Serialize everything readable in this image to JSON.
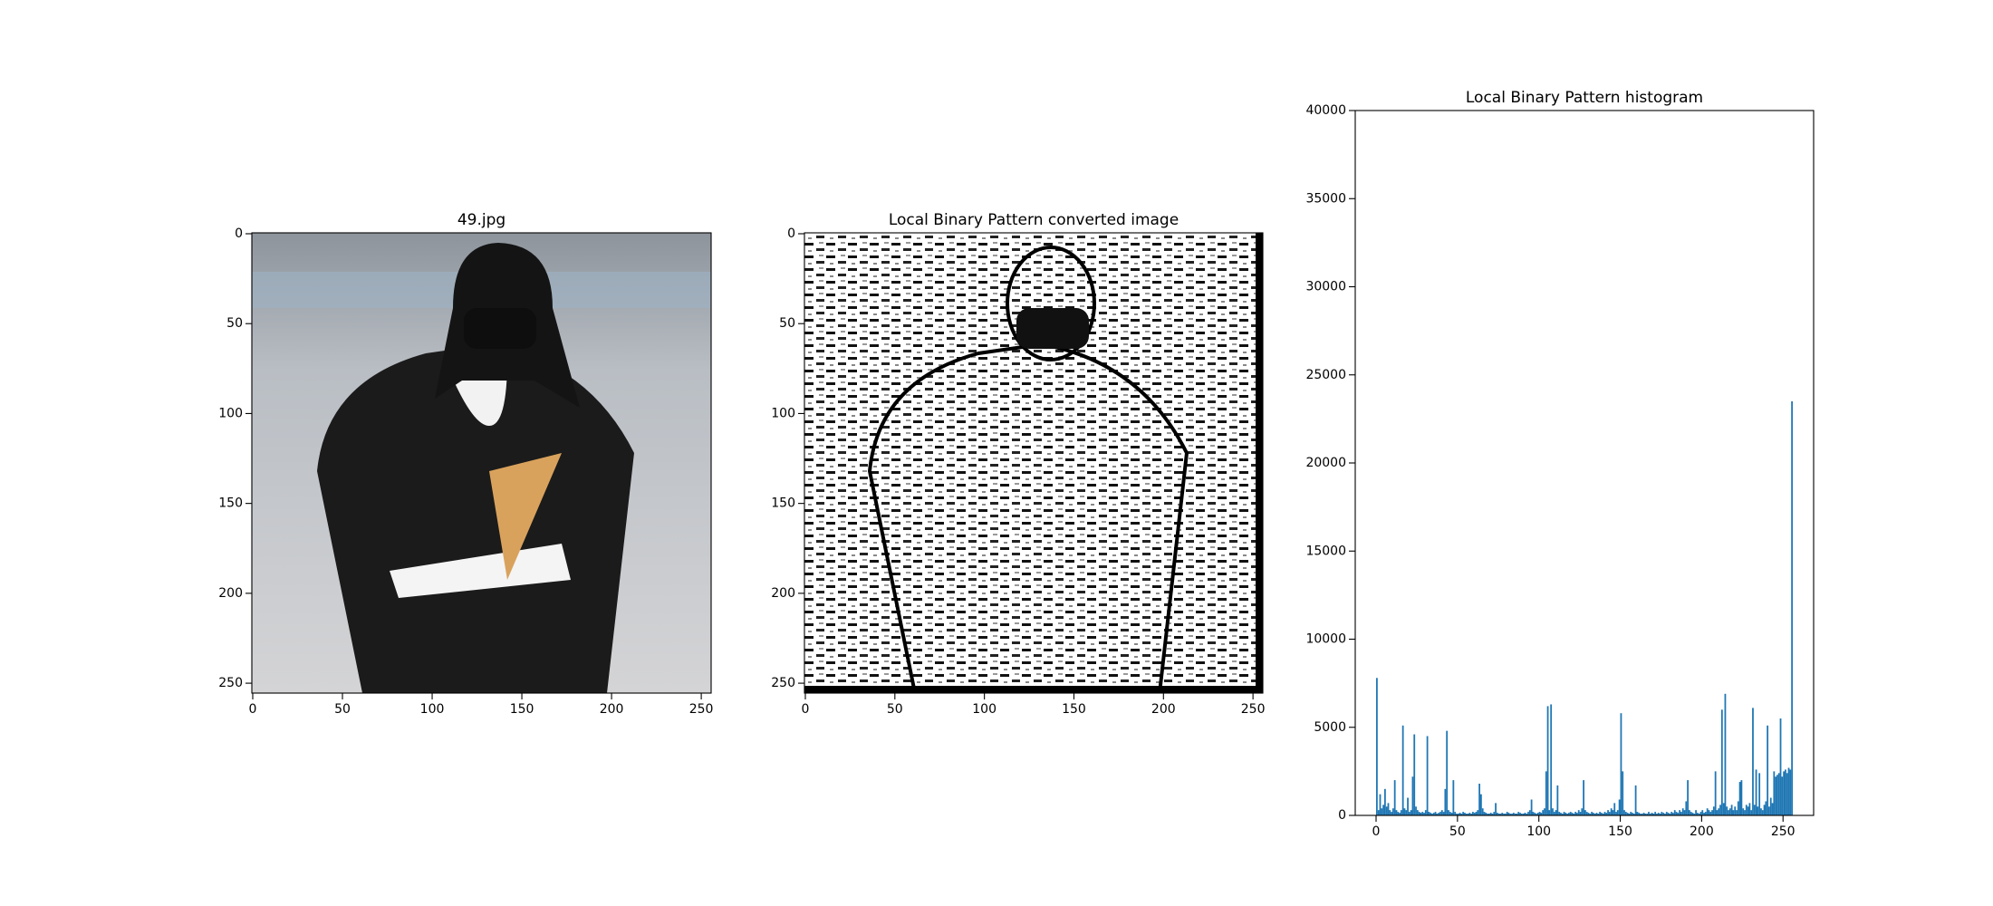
{
  "chart_data": [
    {
      "type": "image",
      "title": "49.jpg",
      "xlim": [
        -0.5,
        255.5
      ],
      "ylim": [
        255.5,
        -0.5
      ],
      "xticks": [
        0,
        50,
        100,
        150,
        200,
        250
      ],
      "yticks": [
        0,
        50,
        100,
        150,
        200,
        250
      ]
    },
    {
      "type": "image",
      "title": "Local Binary Pattern converted image",
      "xlim": [
        -0.5,
        255.5
      ],
      "ylim": [
        255.5,
        -0.5
      ],
      "xticks": [
        0,
        50,
        100,
        150,
        200,
        250
      ],
      "yticks": [
        0,
        50,
        100,
        150,
        200,
        250
      ]
    },
    {
      "type": "histogram",
      "title": "Local Binary Pattern histogram",
      "color": "#1f77b4",
      "xlim": [
        -12.8,
        268.8
      ],
      "ylim": [
        0,
        40000
      ],
      "xticks": [
        0,
        50,
        100,
        150,
        200,
        250
      ],
      "yticks": [
        0,
        5000,
        10000,
        15000,
        20000,
        25000,
        30000,
        35000,
        40000
      ],
      "bins": [
        0,
        1,
        2,
        3,
        4,
        5,
        6,
        7,
        8,
        9,
        10,
        11,
        12,
        13,
        14,
        15,
        16,
        17,
        18,
        19,
        20,
        21,
        22,
        23,
        24,
        25,
        26,
        27,
        28,
        29,
        30,
        31,
        32,
        33,
        34,
        35,
        36,
        37,
        38,
        39,
        40,
        41,
        42,
        43,
        44,
        45,
        46,
        47,
        48,
        49,
        50,
        51,
        52,
        53,
        54,
        55,
        56,
        57,
        58,
        59,
        60,
        61,
        62,
        63,
        64,
        65,
        66,
        67,
        68,
        69,
        70,
        71,
        72,
        73,
        74,
        75,
        76,
        77,
        78,
        79,
        80,
        81,
        82,
        83,
        84,
        85,
        86,
        87,
        88,
        89,
        90,
        91,
        92,
        93,
        94,
        95,
        96,
        97,
        98,
        99,
        100,
        101,
        102,
        103,
        104,
        105,
        106,
        107,
        108,
        109,
        110,
        111,
        112,
        113,
        114,
        115,
        116,
        117,
        118,
        119,
        120,
        121,
        122,
        123,
        124,
        125,
        126,
        127,
        128,
        129,
        130,
        131,
        132,
        133,
        134,
        135,
        136,
        137,
        138,
        139,
        140,
        141,
        142,
        143,
        144,
        145,
        146,
        147,
        148,
        149,
        150,
        151,
        152,
        153,
        154,
        155,
        156,
        157,
        158,
        159,
        160,
        161,
        162,
        163,
        164,
        165,
        166,
        167,
        168,
        169,
        170,
        171,
        172,
        173,
        174,
        175,
        176,
        177,
        178,
        179,
        180,
        181,
        182,
        183,
        184,
        185,
        186,
        187,
        188,
        189,
        190,
        191,
        192,
        193,
        194,
        195,
        196,
        197,
        198,
        199,
        200,
        201,
        202,
        203,
        204,
        205,
        206,
        207,
        208,
        209,
        210,
        211,
        212,
        213,
        214,
        215,
        216,
        217,
        218,
        219,
        220,
        221,
        222,
        223,
        224,
        225,
        226,
        227,
        228,
        229,
        230,
        231,
        232,
        233,
        234,
        235,
        236,
        237,
        238,
        239,
        240,
        241,
        242,
        243,
        244,
        245,
        246,
        247,
        248,
        249,
        250,
        251,
        252,
        253,
        254,
        255,
        256
      ],
      "counts": [
        7800,
        300,
        1200,
        400,
        600,
        1500,
        500,
        700,
        300,
        200,
        400,
        2000,
        300,
        200,
        150,
        300,
        5100,
        400,
        300,
        1000,
        200,
        300,
        2200,
        4600,
        500,
        300,
        200,
        150,
        200,
        150,
        300,
        4500,
        200,
        150,
        100,
        150,
        200,
        100,
        150,
        200,
        300,
        200,
        1500,
        4800,
        300,
        200,
        150,
        2000,
        200,
        100,
        100,
        150,
        100,
        200,
        150,
        100,
        100,
        150,
        100,
        200,
        150,
        200,
        300,
        1800,
        1200,
        400,
        200,
        150,
        100,
        100,
        150,
        100,
        200,
        700,
        150,
        100,
        100,
        150,
        100,
        100,
        200,
        150,
        100,
        100,
        150,
        100,
        100,
        200,
        150,
        100,
        100,
        150,
        100,
        200,
        300,
        900,
        200,
        150,
        100,
        150,
        200,
        150,
        300,
        400,
        2500,
        6200,
        300,
        6300,
        400,
        200,
        300,
        1700,
        200,
        150,
        100,
        200,
        150,
        100,
        150,
        200,
        150,
        100,
        200,
        150,
        300,
        200,
        400,
        2000,
        300,
        200,
        150,
        100,
        200,
        150,
        100,
        150,
        100,
        200,
        150,
        100,
        200,
        150,
        300,
        200,
        400,
        300,
        700,
        200,
        300,
        900,
        5800,
        2500,
        300,
        200,
        150,
        100,
        200,
        150,
        100,
        1700,
        200,
        150,
        100,
        100,
        150,
        100,
        100,
        200,
        100,
        150,
        100,
        200,
        100,
        150,
        100,
        200,
        150,
        100,
        200,
        150,
        100,
        200,
        150,
        300,
        200,
        150,
        300,
        200,
        400,
        300,
        800,
        2000,
        300,
        200,
        150,
        100,
        300,
        150,
        100,
        200,
        300,
        150,
        200,
        400,
        300,
        200,
        300,
        500,
        2500,
        300,
        400,
        600,
        6000,
        700,
        6900,
        500,
        300,
        400,
        600,
        300,
        500,
        300,
        800,
        1900,
        2000,
        400,
        300,
        600,
        500,
        700,
        300,
        6100,
        600,
        2600,
        500,
        2400,
        400,
        300,
        600,
        800,
        5100,
        500,
        1000,
        700,
        2500,
        2200,
        2300,
        2400,
        5500,
        2200,
        2500,
        2600,
        2400,
        2700,
        2600,
        23500
      ]
    }
  ]
}
